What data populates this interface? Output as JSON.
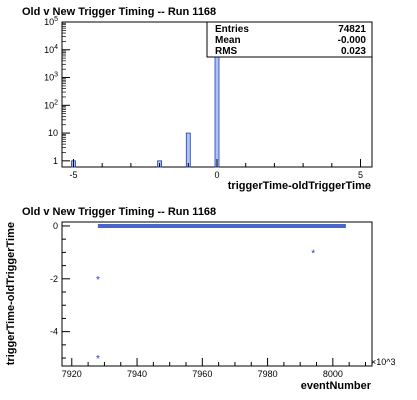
{
  "colors": {
    "fill": "#6f8fe0",
    "stroke": "#1a3fbf",
    "axis": "#000000",
    "background": "#ffffff"
  },
  "chart_data": [
    {
      "type": "bar",
      "title": "Old v New Trigger Timing -- Run 1168",
      "xlabel": "triggerTime-oldTriggerTime",
      "ylabel": "",
      "yscale": "log",
      "xlim": [
        -5.4,
        5.4
      ],
      "ylim": [
        0.6,
        100000
      ],
      "xticks": [
        -5,
        0,
        5
      ],
      "xtick_labels": [
        "-5",
        "0",
        "5"
      ],
      "yticks": [
        1,
        10,
        100,
        1000,
        10000,
        100000
      ],
      "ytick_labels": [
        "1",
        "10",
        "10^2",
        "10^3",
        "10^4",
        "10^5"
      ],
      "bins": [
        {
          "x": -5,
          "value": 1
        },
        {
          "x": -2,
          "value": 1
        },
        {
          "x": -1,
          "value": 10
        },
        {
          "x": 0,
          "value": 74809
        }
      ],
      "stats": {
        "rows": [
          {
            "label": "Entries",
            "value": "74821"
          },
          {
            "label": "Mean",
            "value": "-0.000"
          },
          {
            "label": "RMS",
            "value": "0.023"
          }
        ]
      }
    },
    {
      "type": "scatter",
      "title": "Old v New Trigger Timing -- Run 1168",
      "xlabel": "eventNumber",
      "ylabel": "triggerTime-oldTriggerTime",
      "x_multiplier": "×10^3",
      "xlim": [
        7917,
        8012
      ],
      "ylim": [
        -5.3,
        0.15
      ],
      "xticks": [
        7920,
        7940,
        7960,
        7980,
        8000
      ],
      "xtick_labels": [
        "7920",
        "7940",
        "7960",
        "7980",
        "8000"
      ],
      "yticks": [
        0,
        -2,
        -4
      ],
      "ytick_labels": [
        "0",
        "-2",
        "-4"
      ],
      "band": {
        "x_start": 7928,
        "x_end": 8004,
        "y": 0
      },
      "points": [
        {
          "x": 7928,
          "y": -2
        },
        {
          "x": 7928,
          "y": -5
        },
        {
          "x": 7994,
          "y": -1
        }
      ]
    }
  ]
}
